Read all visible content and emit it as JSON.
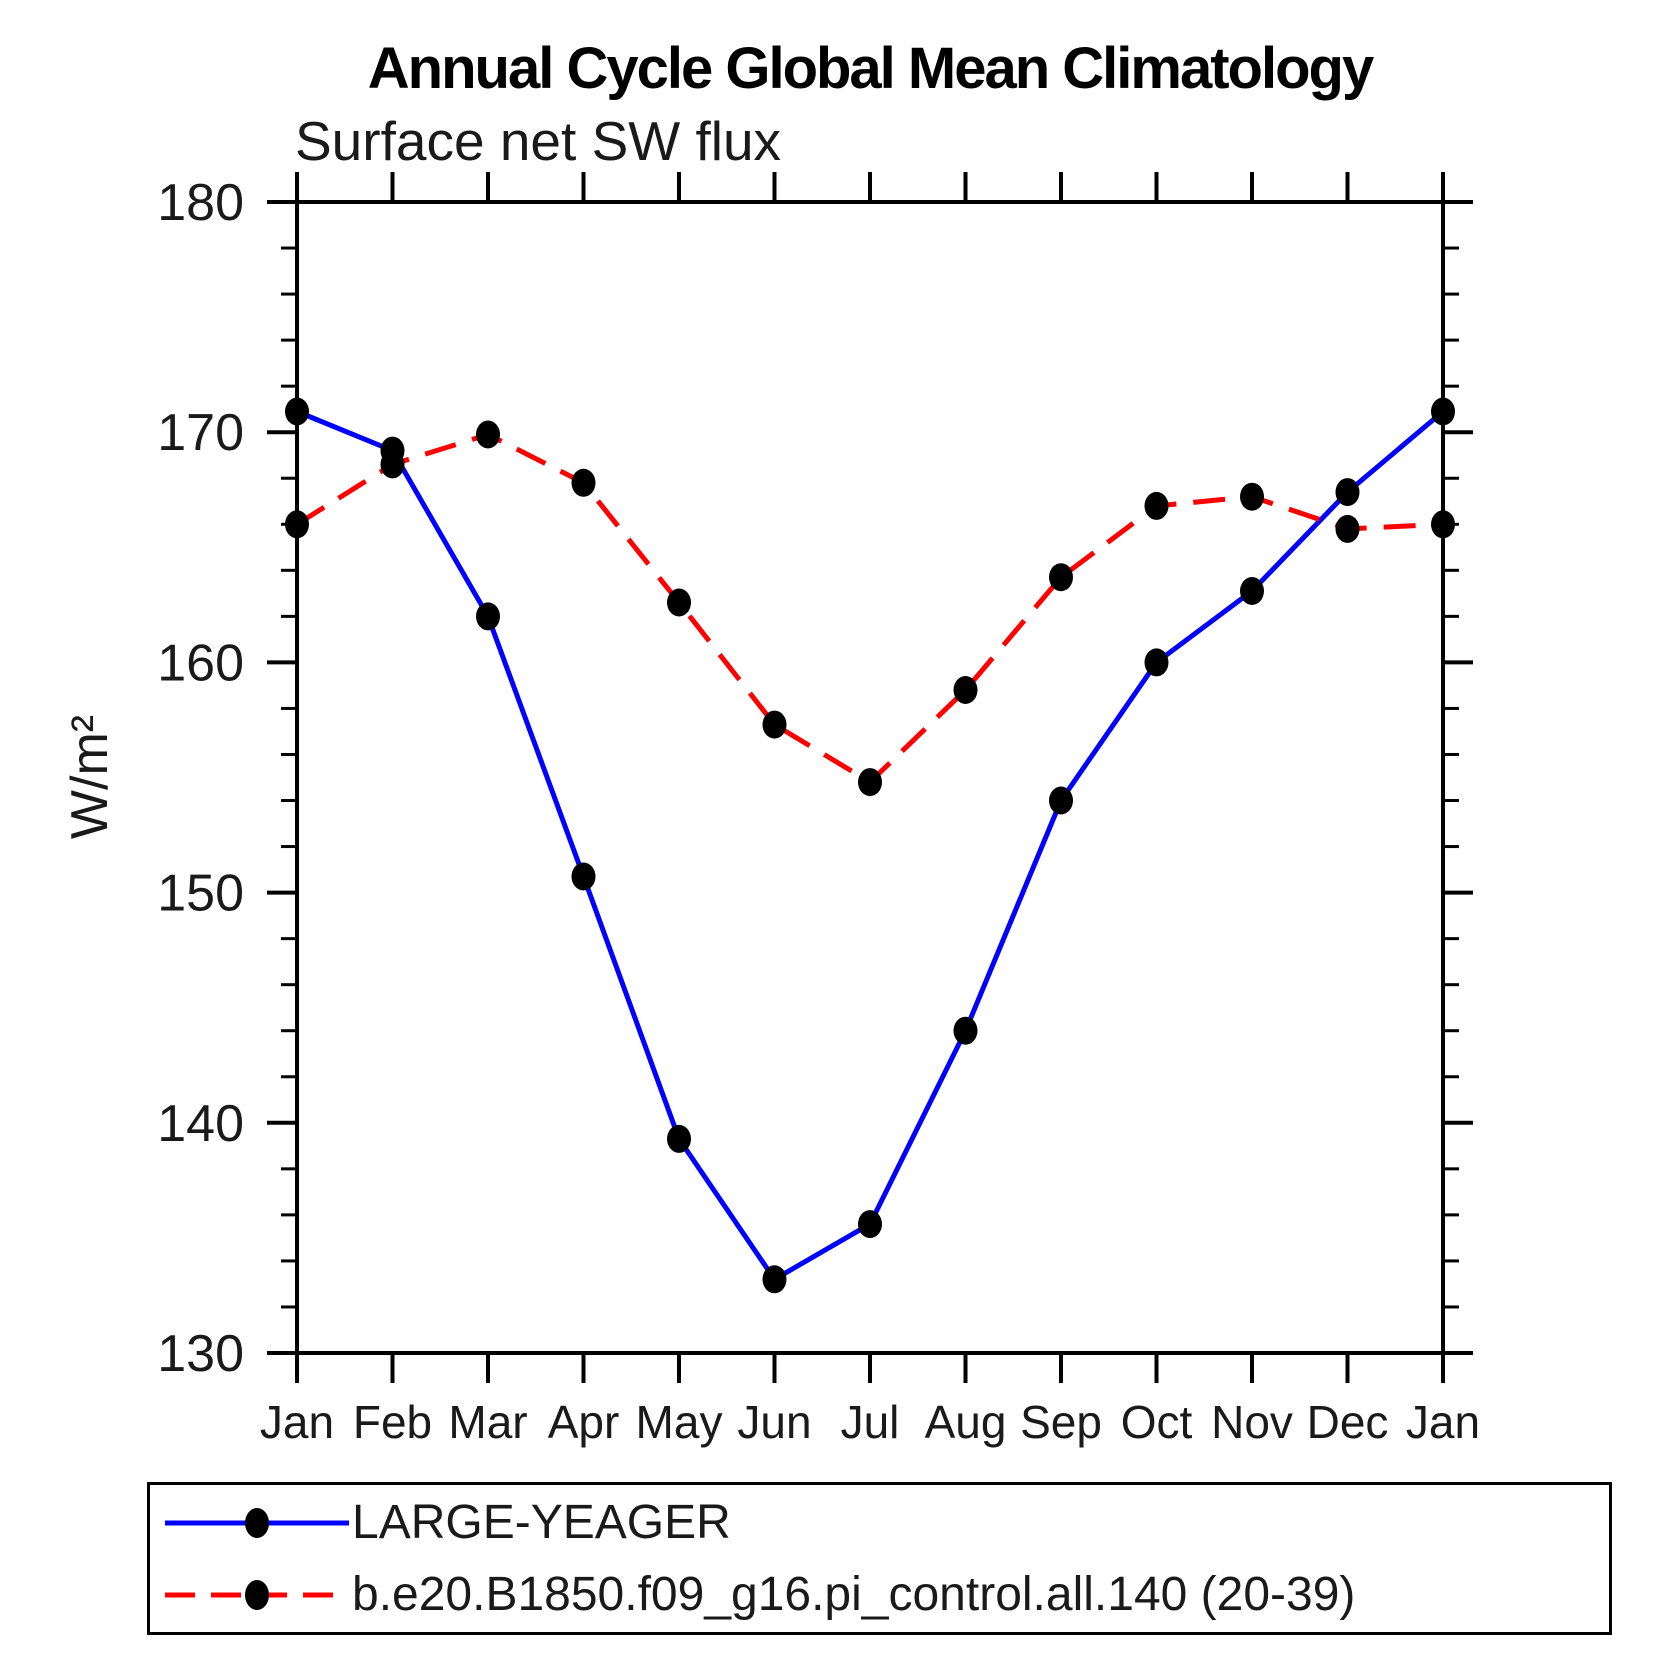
{
  "page": {
    "background_color": "#ffffff",
    "axis_color": "#000000",
    "text_color": "#1a1a1a"
  },
  "chart_data": {
    "type": "line",
    "title": "Annual Cycle Global Mean Climatology",
    "subtitle": "Surface net SW flux",
    "ylabel": "W/m²",
    "xlabel": "",
    "x_tick_labels": [
      "Jan",
      "Feb",
      "Mar",
      "Apr",
      "May",
      "Jun",
      "Jul",
      "Aug",
      "Sep",
      "Oct",
      "Nov",
      "Dec",
      "Jan"
    ],
    "ylim": [
      130,
      180
    ],
    "y_major_ticks": [
      130,
      140,
      150,
      160,
      170,
      180
    ],
    "y_minor_step": 2,
    "grid": false,
    "legend_position": "bottom-box",
    "series": [
      {
        "name": "LARGE-YEAGER",
        "color": "#0000ff",
        "line_style": "solid",
        "marker": "filled-circle",
        "marker_color": "#000000",
        "values": [
          170.9,
          169.2,
          162.0,
          150.7,
          139.3,
          133.2,
          135.6,
          144.0,
          154.0,
          160.0,
          163.1,
          167.4,
          170.9
        ]
      },
      {
        "name": "b.e20.B1850.f09_g16.pi_control.all.140 (20-39)",
        "color": "#ff0000",
        "line_style": "dashed",
        "marker": "filled-circle",
        "marker_color": "#000000",
        "values": [
          166.0,
          168.6,
          169.9,
          167.8,
          162.6,
          157.3,
          154.8,
          158.8,
          163.7,
          166.8,
          167.2,
          165.8,
          166.0
        ]
      }
    ]
  }
}
